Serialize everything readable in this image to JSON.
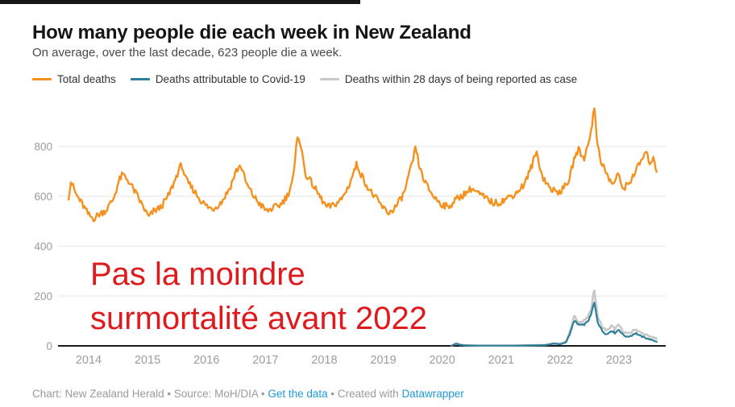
{
  "header": {
    "title": "How many people die each week in New Zealand",
    "subtitle": "On average, over the last decade, 623 people die a week."
  },
  "annotation_note": {
    "line1": "Pas la moindre",
    "line2": "surmortalité avant 2022",
    "color": "#E0191D"
  },
  "footer": {
    "text_chart": "Chart: New Zealand Herald",
    "sep1": " • ",
    "text_source": "Source: MoH/DIA",
    "sep2": " • ",
    "link_get_data": "Get the data",
    "sep3": " • ",
    "text_created": "Created with ",
    "link_datawrapper": "Datawrapper",
    "link_color": "#1D9BD7"
  },
  "chart_data": {
    "type": "line",
    "title": "How many people die each week in New Zealand",
    "xlabel": "",
    "ylabel": "",
    "average_per_week": 623,
    "x_ticks": [
      2014,
      2015,
      2016,
      2017,
      2018,
      2019,
      2020,
      2021,
      2022,
      2023
    ],
    "y_ticks": [
      0,
      200,
      400,
      600,
      800
    ],
    "ylim": [
      0,
      980
    ],
    "x_range": [
      2013.66,
      2023.64
    ],
    "grid": true,
    "legend_position": "top",
    "annotation": "Pas la moindre surmortalité avant 2022",
    "series": [
      {
        "name": "Deaths within 28 days of being reported as case",
        "color": "#C8C8C8",
        "width": 2.6,
        "noise": 5,
        "noise_rel": true,
        "anchors": [
          [
            2020.16,
            1
          ],
          [
            2020.24,
            11
          ],
          [
            2020.3,
            5
          ],
          [
            2020.4,
            2
          ],
          [
            2020.6,
            1
          ],
          [
            2020.9,
            1
          ],
          [
            2021.2,
            1
          ],
          [
            2021.5,
            2
          ],
          [
            2021.75,
            4
          ],
          [
            2021.9,
            11
          ],
          [
            2022.0,
            8
          ],
          [
            2022.1,
            18
          ],
          [
            2022.18,
            65
          ],
          [
            2022.24,
            120
          ],
          [
            2022.3,
            98
          ],
          [
            2022.38,
            96
          ],
          [
            2022.45,
            108
          ],
          [
            2022.52,
            138
          ],
          [
            2022.58,
            230
          ],
          [
            2022.64,
            118
          ],
          [
            2022.72,
            74
          ],
          [
            2022.8,
            60
          ],
          [
            2022.87,
            80
          ],
          [
            2022.93,
            68
          ],
          [
            2023.0,
            84
          ],
          [
            2023.07,
            58
          ],
          [
            2023.14,
            48
          ],
          [
            2023.22,
            56
          ],
          [
            2023.28,
            68
          ],
          [
            2023.36,
            54
          ],
          [
            2023.45,
            44
          ],
          [
            2023.55,
            36
          ],
          [
            2023.64,
            28
          ]
        ]
      },
      {
        "name": "Deaths attributable to Covid-19",
        "color": "#2E7E99",
        "width": 2.2,
        "noise": 4,
        "noise_rel": true,
        "anchors": [
          [
            2020.16,
            1
          ],
          [
            2020.24,
            9
          ],
          [
            2020.3,
            4
          ],
          [
            2020.4,
            2
          ],
          [
            2020.6,
            1
          ],
          [
            2020.9,
            1
          ],
          [
            2021.2,
            1
          ],
          [
            2021.5,
            2
          ],
          [
            2021.75,
            3
          ],
          [
            2021.9,
            9
          ],
          [
            2022.0,
            6
          ],
          [
            2022.1,
            14
          ],
          [
            2022.18,
            55
          ],
          [
            2022.24,
            103
          ],
          [
            2022.3,
            86
          ],
          [
            2022.38,
            82
          ],
          [
            2022.45,
            92
          ],
          [
            2022.52,
            118
          ],
          [
            2022.58,
            176
          ],
          [
            2022.64,
            96
          ],
          [
            2022.72,
            58
          ],
          [
            2022.8,
            46
          ],
          [
            2022.87,
            62
          ],
          [
            2022.93,
            52
          ],
          [
            2023.0,
            66
          ],
          [
            2023.07,
            44
          ],
          [
            2023.14,
            36
          ],
          [
            2023.22,
            42
          ],
          [
            2023.28,
            52
          ],
          [
            2023.36,
            40
          ],
          [
            2023.45,
            32
          ],
          [
            2023.55,
            24
          ],
          [
            2023.64,
            17
          ]
        ]
      },
      {
        "name": "Total deaths",
        "color": "#F5911E",
        "width": 2.4,
        "noise": 14,
        "noise_rel": false,
        "anchors": [
          [
            2013.66,
            600
          ],
          [
            2013.7,
            662
          ],
          [
            2013.78,
            610
          ],
          [
            2013.9,
            565
          ],
          [
            2014.0,
            525
          ],
          [
            2014.08,
            510
          ],
          [
            2014.18,
            528
          ],
          [
            2014.3,
            545
          ],
          [
            2014.42,
            590
          ],
          [
            2014.52,
            665
          ],
          [
            2014.58,
            688
          ],
          [
            2014.68,
            660
          ],
          [
            2014.8,
            612
          ],
          [
            2014.92,
            560
          ],
          [
            2015.02,
            515
          ],
          [
            2015.1,
            540
          ],
          [
            2015.22,
            555
          ],
          [
            2015.35,
            600
          ],
          [
            2015.45,
            655
          ],
          [
            2015.52,
            700
          ],
          [
            2015.58,
            728
          ],
          [
            2015.65,
            665
          ],
          [
            2015.78,
            625
          ],
          [
            2015.9,
            585
          ],
          [
            2016.0,
            560
          ],
          [
            2016.1,
            548
          ],
          [
            2016.25,
            575
          ],
          [
            2016.4,
            635
          ],
          [
            2016.5,
            700
          ],
          [
            2016.58,
            725
          ],
          [
            2016.68,
            648
          ],
          [
            2016.8,
            600
          ],
          [
            2016.92,
            565
          ],
          [
            2017.02,
            540
          ],
          [
            2017.12,
            552
          ],
          [
            2017.25,
            565
          ],
          [
            2017.38,
            605
          ],
          [
            2017.48,
            680
          ],
          [
            2017.55,
            858
          ],
          [
            2017.6,
            800
          ],
          [
            2017.68,
            690
          ],
          [
            2017.8,
            648
          ],
          [
            2017.92,
            600
          ],
          [
            2018.04,
            556
          ],
          [
            2018.15,
            562
          ],
          [
            2018.3,
            590
          ],
          [
            2018.42,
            645
          ],
          [
            2018.55,
            730
          ],
          [
            2018.62,
            690
          ],
          [
            2018.75,
            630
          ],
          [
            2018.88,
            590
          ],
          [
            2019.0,
            552
          ],
          [
            2019.1,
            532
          ],
          [
            2019.22,
            560
          ],
          [
            2019.35,
            610
          ],
          [
            2019.48,
            720
          ],
          [
            2019.55,
            795
          ],
          [
            2019.62,
            710
          ],
          [
            2019.72,
            650
          ],
          [
            2019.85,
            600
          ],
          [
            2019.97,
            572
          ],
          [
            2020.1,
            555
          ],
          [
            2020.22,
            585
          ],
          [
            2020.35,
            605
          ],
          [
            2020.5,
            632
          ],
          [
            2020.62,
            610
          ],
          [
            2020.75,
            590
          ],
          [
            2020.88,
            572
          ],
          [
            2021.0,
            578
          ],
          [
            2021.12,
            595
          ],
          [
            2021.25,
            612
          ],
          [
            2021.4,
            650
          ],
          [
            2021.52,
            722
          ],
          [
            2021.6,
            778
          ],
          [
            2021.7,
            680
          ],
          [
            2021.82,
            635
          ],
          [
            2021.94,
            615
          ],
          [
            2022.05,
            628
          ],
          [
            2022.16,
            668
          ],
          [
            2022.25,
            760
          ],
          [
            2022.32,
            788
          ],
          [
            2022.4,
            748
          ],
          [
            2022.48,
            810
          ],
          [
            2022.55,
            900
          ],
          [
            2022.58,
            958
          ],
          [
            2022.63,
            820
          ],
          [
            2022.7,
            740
          ],
          [
            2022.8,
            682
          ],
          [
            2022.9,
            645
          ],
          [
            2022.98,
            690
          ],
          [
            2023.06,
            632
          ],
          [
            2023.16,
            648
          ],
          [
            2023.28,
            700
          ],
          [
            2023.38,
            742
          ],
          [
            2023.45,
            775
          ],
          [
            2023.52,
            738
          ],
          [
            2023.58,
            748
          ],
          [
            2023.64,
            708
          ]
        ]
      }
    ]
  }
}
